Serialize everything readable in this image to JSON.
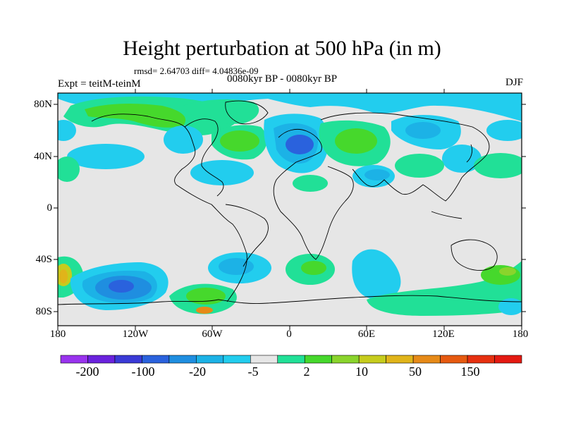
{
  "title": "Height perturbation at 500 hPa (in m)",
  "stats": "rmsd= 2.64703 diff= 4.04836e-09",
  "experiment": "Expt = teitM-teinM",
  "period": "0080kyr BP - 0080kyr BP",
  "season": "DJF",
  "lat_labels": [
    "80N",
    "40N",
    "0",
    "40S",
    "80S"
  ],
  "lon_labels": [
    "180",
    "120W",
    "60W",
    "0",
    "60E",
    "120E",
    "180"
  ],
  "colorbar": {
    "labels": [
      "-200",
      "-100",
      "-20",
      "-5",
      "2",
      "10",
      "50",
      "150"
    ],
    "colors": [
      "#9933ee",
      "#6a22dd",
      "#3a3ad6",
      "#2a62dd",
      "#1f8ee0",
      "#1cb2e6",
      "#22cdee",
      "#e6e6e6",
      "#21e097",
      "#46d82c",
      "#8ad42c",
      "#c6cc1d",
      "#e0b41a",
      "#e68a18",
      "#e65a10",
      "#e63010",
      "#e41a12"
    ]
  },
  "map": {
    "background_color": "#e6e6e6",
    "features": [
      {
        "name": "north-atlantic-low",
        "level": "blue"
      },
      {
        "name": "north-america-high",
        "level": "green"
      },
      {
        "name": "central-asia-high",
        "level": "green"
      },
      {
        "name": "south-pacific-low",
        "level": "blue"
      },
      {
        "name": "southern-ocean-high",
        "level": "green"
      }
    ]
  }
}
